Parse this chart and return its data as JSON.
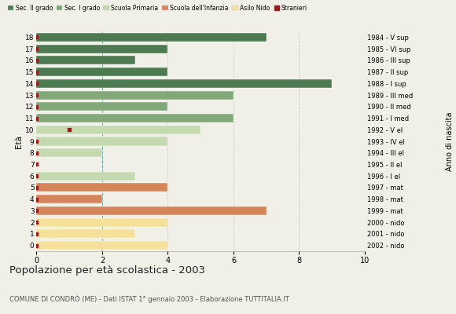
{
  "ages": [
    18,
    17,
    16,
    15,
    14,
    13,
    12,
    11,
    10,
    9,
    8,
    7,
    6,
    5,
    4,
    3,
    2,
    1,
    0
  ],
  "right_labels": [
    "1984 - V sup",
    "1985 - VI sup",
    "1986 - III sup",
    "1987 - II sup",
    "1988 - I sup",
    "1989 - III med",
    "1990 - II med",
    "1991 - I med",
    "1992 - V el",
    "1993 - IV el",
    "1994 - III el",
    "1995 - II el",
    "1996 - I el",
    "1997 - mat",
    "1998 - mat",
    "1999 - mat",
    "2000 - nido",
    "2001 - nido",
    "2002 - nido"
  ],
  "bar_values": [
    7,
    4,
    3,
    4,
    9,
    6,
    4,
    6,
    5,
    4,
    2,
    0,
    3,
    4,
    2,
    7,
    4,
    3,
    4
  ],
  "bar_colors": [
    "#4e7a52",
    "#4e7a52",
    "#4e7a52",
    "#4e7a52",
    "#4e7a52",
    "#82a87a",
    "#82a87a",
    "#82a87a",
    "#c5d9b0",
    "#c5d9b0",
    "#c5d9b0",
    "#c5d9b0",
    "#c5d9b0",
    "#d4855a",
    "#d4855a",
    "#d4855a",
    "#f5e09a",
    "#f5e09a",
    "#f5e09a"
  ],
  "stranieri_x_pos": [
    0,
    0,
    0,
    0,
    0,
    0,
    0,
    0,
    1,
    0,
    0,
    0,
    0,
    0,
    0,
    0,
    0,
    0,
    0
  ],
  "legend_labels": [
    "Sec. II grado",
    "Sec. I grado",
    "Scuola Primaria",
    "Scuola dell'Infanzia",
    "Asilo Nido",
    "Stranieri"
  ],
  "legend_colors": [
    "#4e7a52",
    "#82a87a",
    "#c5d9b0",
    "#d4855a",
    "#f5e09a",
    "#b22222"
  ],
  "title": "Popolazione per età scolastica - 2003",
  "subtitle": "COMUNE DI CONDRÒ (ME) - Dati ISTAT 1° gennaio 2003 - Elaborazione TUTTITALIA.IT",
  "ylabel_left": "Età",
  "ylabel_right": "Anno di nascita",
  "xlim": [
    0,
    10
  ],
  "xticks": [
    0,
    2,
    4,
    6,
    8,
    10
  ],
  "bg_color": "#f0f0e8",
  "dashed_line_color": "#5fa8a8",
  "grid_color": "#cccccc",
  "stranieri_color": "#9b1c1c"
}
